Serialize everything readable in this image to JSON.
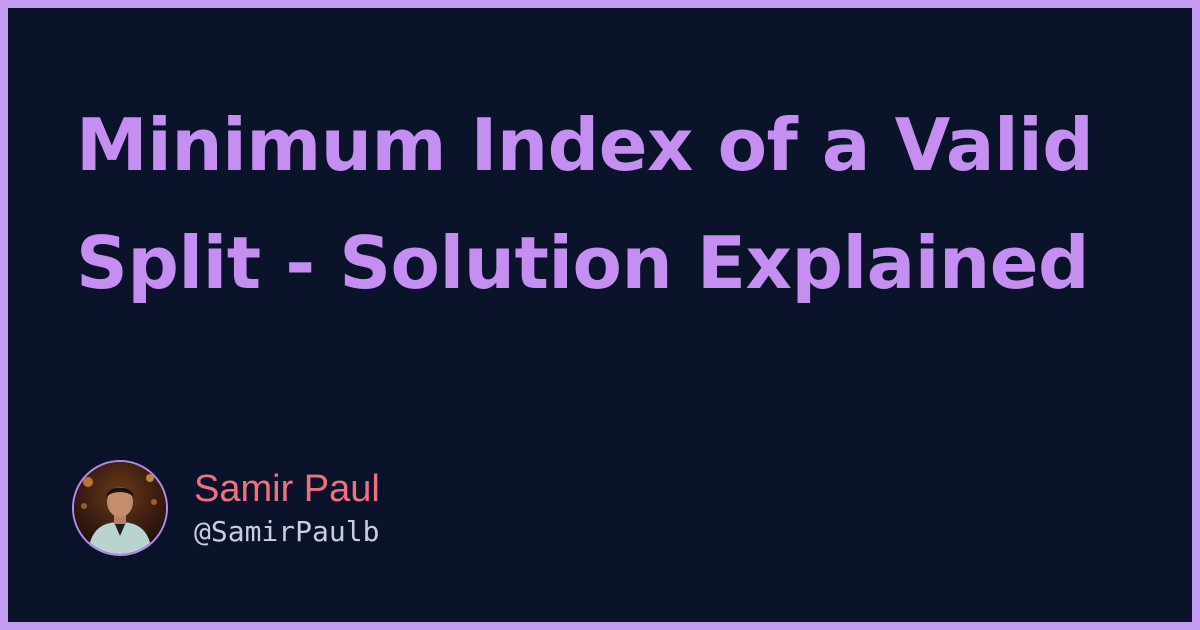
{
  "title": "Minimum Index of a Valid Split - Solution Explained",
  "author": {
    "name": "Samir Paul",
    "handle": "@SamirPaulb",
    "avatar_icon": "avatar-photo"
  },
  "colors": {
    "border": "#c49cf2",
    "background": "#0b132a",
    "title": "#c48ff0",
    "author_name": "#f07080",
    "author_handle": "#c9cde0"
  }
}
